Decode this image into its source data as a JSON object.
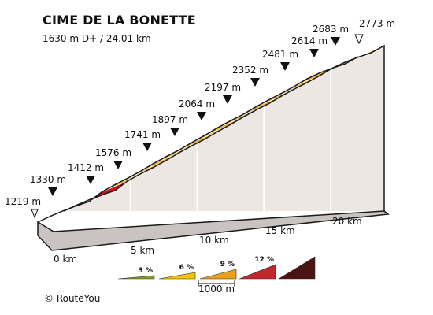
{
  "title": "CIME DE LA BONETTE",
  "subtitle": "1630 m D+ / 24.01 km",
  "copyright": "© RouteYou",
  "chart_data": {
    "type": "area",
    "title": "CIME DE LA BONETTE",
    "subtitle": "1630 m D+ / 24.01 km",
    "start_label": "1219 m",
    "summit_label": "2773 m",
    "altitude_marks": [
      {
        "label": "1330 m"
      },
      {
        "label": "1412 m"
      },
      {
        "label": "1576 m"
      },
      {
        "label": "1741 m"
      },
      {
        "label": "1897 m"
      },
      {
        "label": "2064 m"
      },
      {
        "label": "2197 m"
      },
      {
        "label": "2352 m"
      },
      {
        "label": "2481 m"
      },
      {
        "label": "2614 m"
      },
      {
        "label": "2683 m"
      }
    ],
    "distance_labels": [
      "0 km",
      "5 km",
      "10 km",
      "15 km",
      "20 km"
    ],
    "x_km": [
      0,
      1,
      2,
      3,
      4,
      5,
      6,
      7,
      8,
      9,
      10,
      11,
      12,
      13,
      14,
      15,
      16,
      17,
      18,
      19,
      20,
      21,
      22,
      23,
      24.01
    ],
    "elevation_m": [
      1219,
      1330,
      1412,
      1576,
      1741,
      1897,
      2064,
      2197,
      2352,
      2481,
      2614,
      2683,
      2773
    ],
    "segments": [
      {
        "grade_pct": 5.5
      },
      {
        "grade_pct": 5.0
      },
      {
        "grade_pct": 4.5
      },
      {
        "grade_pct": 4.0
      },
      {
        "grade_pct": 9.0
      },
      {
        "grade_pct": 6.5
      },
      {
        "grade_pct": 6.0
      },
      {
        "grade_pct": 6.5
      },
      {
        "grade_pct": 7.0
      },
      {
        "grade_pct": 6.5
      },
      {
        "grade_pct": 6.0
      },
      {
        "grade_pct": 7.0
      },
      {
        "grade_pct": 6.5
      },
      {
        "grade_pct": 7.0
      },
      {
        "grade_pct": 6.5
      },
      {
        "grade_pct": 6.0
      },
      {
        "grade_pct": 7.0
      },
      {
        "grade_pct": 6.5
      },
      {
        "grade_pct": 6.0
      },
      {
        "grade_pct": 6.5
      },
      {
        "grade_pct": 7.0
      },
      {
        "grade_pct": 5.5
      },
      {
        "grade_pct": 4.5
      },
      {
        "grade_pct": 4.0
      },
      {
        "grade_pct": 6.5
      }
    ],
    "legend": {
      "scale_label": "1000 m",
      "items": [
        {
          "label": "3 %",
          "color": "#8a9a2a"
        },
        {
          "label": "6 %",
          "color": "#f5c400"
        },
        {
          "label": "9 %",
          "color": "#e8a020"
        },
        {
          "label": "12 %",
          "color": "#c1272d"
        },
        {
          "label": "",
          "color": "#4a1414"
        }
      ]
    },
    "colors": {
      "green": "#8a9a2a",
      "yellow": "#f5d21c",
      "orange": "#efa51b",
      "red": "#c8141e",
      "dark": "#4a1414",
      "side_fill": "#ece7e3",
      "outline": "#1a1a1a"
    }
  }
}
